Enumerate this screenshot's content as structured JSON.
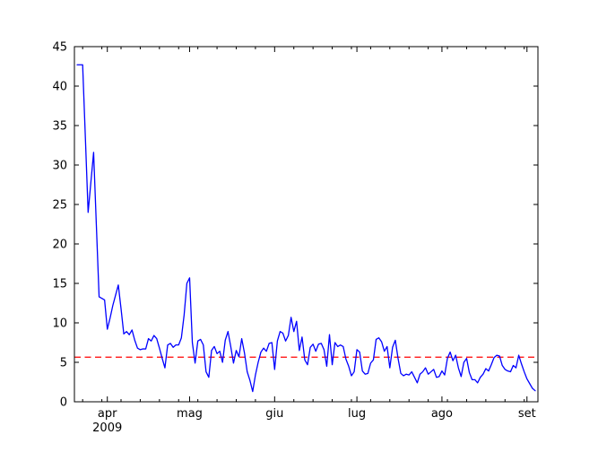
{
  "figure": {
    "background": "#ffffff",
    "text_color": "#000000",
    "frame_color": "#000000"
  },
  "chart_data": {
    "type": "line",
    "title": "",
    "xlabel": "",
    "ylabel": "",
    "grid": false,
    "legend": false,
    "ylim": [
      0,
      45
    ],
    "y_ticks": [
      0,
      5,
      10,
      15,
      20,
      25,
      30,
      35,
      40,
      45
    ],
    "x_axis": {
      "start_date": "2009-03-20",
      "end_date": "2009-09-05",
      "span_days": 169,
      "major_ticks": [
        {
          "label": "apr",
          "day_offset": 12
        },
        {
          "label": "mag",
          "day_offset": 42
        },
        {
          "label": "giu",
          "day_offset": 73
        },
        {
          "label": "lug",
          "day_offset": 103
        },
        {
          "label": "ago",
          "day_offset": 134
        },
        {
          "label": "set",
          "day_offset": 165
        }
      ],
      "year_label": "2009",
      "minor_tick_day_offsets": [
        3,
        10,
        17,
        24,
        31,
        38,
        45,
        52,
        59,
        66,
        80,
        87,
        94,
        101,
        108,
        115,
        122,
        129,
        136,
        143,
        150,
        157,
        164
      ]
    },
    "series": [
      {
        "name": "daily-values",
        "color": "#0000ff",
        "line_width": 1.3,
        "start_date": "2009-03-21",
        "start_day_offset": 1,
        "frequency": "daily",
        "values": [
          42.7,
          42.7,
          42.7,
          33.4,
          24.0,
          27.8,
          31.6,
          22.4,
          13.3,
          13.1,
          12.9,
          9.2,
          10.6,
          12.2,
          13.5,
          14.8,
          11.8,
          8.6,
          8.9,
          8.5,
          9.1,
          7.8,
          6.8,
          6.6,
          6.7,
          6.7,
          8.0,
          7.7,
          8.4,
          8.0,
          6.8,
          5.5,
          4.3,
          7.2,
          7.4,
          6.9,
          7.2,
          7.2,
          8.1,
          11.0,
          15.0,
          15.7,
          7.5,
          4.9,
          7.7,
          7.9,
          7.2,
          3.8,
          3.1,
          6.5,
          7.0,
          6.1,
          6.4,
          5.0,
          7.8,
          8.9,
          7.0,
          4.9,
          6.5,
          5.7,
          8.0,
          6.2,
          3.8,
          2.7,
          1.3,
          3.4,
          5.0,
          6.3,
          6.8,
          6.4,
          7.4,
          7.5,
          4.1,
          7.7,
          8.9,
          8.7,
          7.7,
          8.4,
          10.7,
          8.9,
          10.2,
          6.5,
          8.2,
          5.3,
          4.7,
          6.9,
          7.3,
          6.4,
          7.3,
          7.4,
          6.6,
          4.5,
          8.5,
          4.7,
          7.5,
          7.0,
          7.2,
          7.0,
          5.4,
          4.5,
          3.3,
          3.8,
          6.6,
          6.3,
          3.9,
          3.5,
          3.6,
          4.9,
          5.3,
          7.9,
          8.1,
          7.6,
          6.4,
          7.0,
          4.3,
          6.9,
          7.8,
          5.5,
          3.6,
          3.3,
          3.5,
          3.4,
          3.8,
          3.1,
          2.4,
          3.5,
          3.8,
          4.3,
          3.5,
          3.8,
          4.1,
          3.1,
          3.2,
          3.9,
          3.4,
          5.5,
          6.3,
          5.2,
          5.9,
          4.3,
          3.2,
          5.0,
          5.5,
          3.7,
          2.8,
          2.8,
          2.4,
          3.1,
          3.5,
          4.2,
          3.9,
          4.7,
          5.6,
          5.9,
          5.8,
          4.6,
          4.1,
          3.9,
          3.8,
          4.6,
          4.3,
          5.9,
          4.8,
          3.8,
          2.9,
          2.3,
          1.7,
          1.4
        ]
      }
    ],
    "reference_line": {
      "name": "dashed-reference-line",
      "value": 5.65,
      "color": "#ff0000",
      "style": "dashed",
      "dash": [
        7,
        4.5
      ],
      "line_width": 1.3
    }
  }
}
